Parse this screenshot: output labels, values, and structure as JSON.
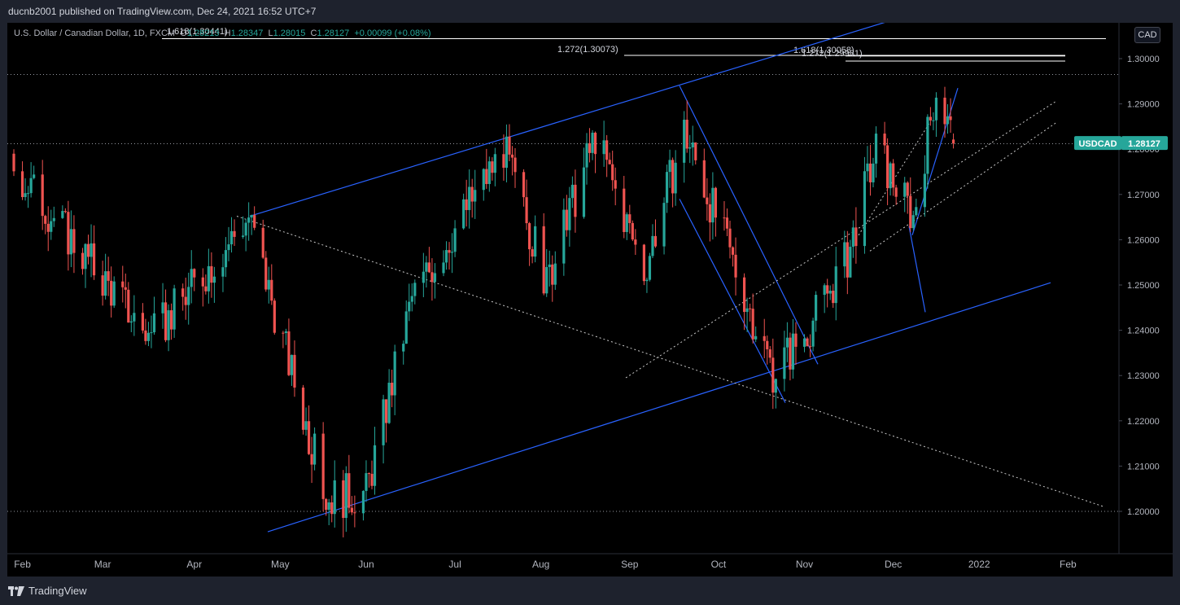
{
  "header": {
    "publish_text": "ducnb2001 published on TradingView.com, Dec 24, 2021 16:52 UTC+7"
  },
  "legend": {
    "instrument": "U.S. Dollar / Canadian Dollar, 1D, FXCM",
    "open_label": "O",
    "open_value": "1.28213",
    "high_label": "H",
    "high_value": "1.28347",
    "low_label": "L",
    "low_value": "1.28015",
    "close_label": "C",
    "close_value": "1.28127",
    "change": "+0.00099 (+0.08%)"
  },
  "currency_button": "CAD",
  "colors": {
    "bullish": "#26a69a",
    "bearish": "#ef5350",
    "channel_line": "#2962ff",
    "dotted_trend": "#c8c8c8",
    "fib_line": "#ffffff",
    "price_label_bg": "#26a69a"
  },
  "price_label": {
    "symbol": "USDCAD",
    "value": "1.28127"
  },
  "fib_labels": [
    {
      "text": "1.618(1.30441)"
    },
    {
      "text": "1.272(1.30073)"
    },
    {
      "text": "1.618(1.30058)"
    },
    {
      "text": "1.272(1.29981)"
    }
  ],
  "chart_data": {
    "type": "candlestick",
    "title": "U.S. Dollar / Canadian Dollar, 1D, FXCM",
    "ylim": [
      1.1925,
      1.3105
    ],
    "y_ticks": [
      "1.30000",
      "1.29000",
      "1.28000",
      "1.27000",
      "1.26000",
      "1.25000",
      "1.24000",
      "1.23000",
      "1.22000",
      "1.21000",
      "1.20000"
    ],
    "x_ticks": [
      "Feb",
      "Mar",
      "Apr",
      "May",
      "Jun",
      "Jul",
      "Aug",
      "Sep",
      "Oct",
      "Nov",
      "Dec",
      "2022",
      "Feb"
    ],
    "key_points": [
      {
        "date": "2021-01-29",
        "close": 1.276
      },
      {
        "date": "2021-03-18",
        "close": 1.238
      },
      {
        "date": "2021-04-21",
        "close": 1.265
      },
      {
        "date": "2021-05-18",
        "close": 1.203
      },
      {
        "date": "2021-06-01",
        "close": 1.204
      },
      {
        "date": "2021-06-17",
        "close": 1.247
      },
      {
        "date": "2021-07-19",
        "close": 1.28
      },
      {
        "date": "2021-08-03",
        "close": 1.25
      },
      {
        "date": "2021-08-20",
        "close": 1.283
      },
      {
        "date": "2021-09-06",
        "close": 1.253
      },
      {
        "date": "2021-09-20",
        "close": 1.284
      },
      {
        "date": "2021-10-21",
        "close": 1.231
      },
      {
        "date": "2021-11-01",
        "close": 1.239
      },
      {
        "date": "2021-11-16",
        "close": 1.256
      },
      {
        "date": "2021-11-26",
        "close": 1.28
      },
      {
        "date": "2021-12-09",
        "close": 1.265
      },
      {
        "date": "2021-12-17",
        "close": 1.294
      },
      {
        "date": "2021-12-23",
        "close": 1.28127
      }
    ],
    "last_candle": {
      "open": 1.28213,
      "high": 1.28347,
      "low": 1.28015,
      "close": 1.28127
    },
    "dotted_levels": [
      1.2965,
      1.2812,
      1.2
    ],
    "fib_levels": [
      1.30441,
      1.30073,
      1.30058,
      1.29981
    ]
  }
}
